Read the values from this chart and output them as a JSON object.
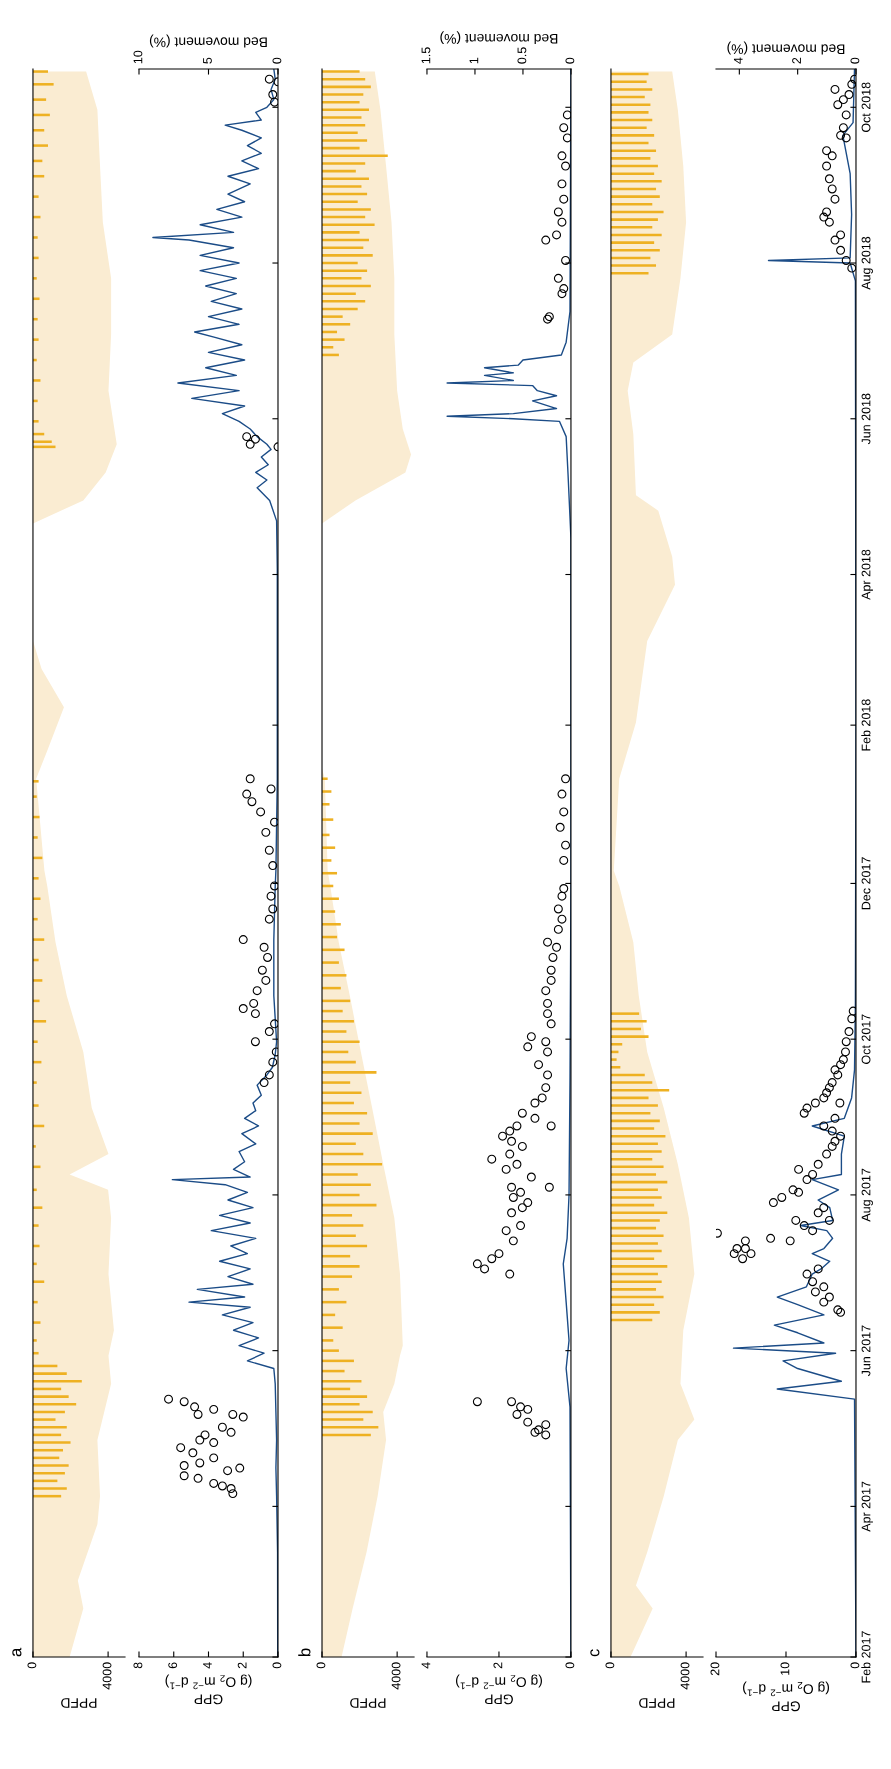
{
  "chart_data": [
    {
      "type": "area",
      "orientation": "horizontal",
      "title": "a",
      "xlabel": "PPFD",
      "ylim": [
        "2017-02-01",
        "2018-10-16"
      ],
      "xlim": [
        0,
        4900
      ],
      "xticks": [
        0,
        4000
      ],
      "tick_labels": "x",
      "series": [
        {
          "color": "#faecd2",
          "x": [
            "2017-02-01",
            "2017-02-20",
            "2017-03-03",
            "2017-03-25",
            "2017-04-05",
            "2017-04-27",
            "2017-05-19",
            "2017-05-30",
            "2017-06-09",
            "2017-07-01",
            "2017-07-23",
            "2017-08-03",
            "2017-08-09",
            "2017-08-17",
            "2017-09-04",
            "2017-09-26",
            "2017-10-18",
            "2017-11-08",
            "2017-11-30",
            "2017-12-06",
            "2018-01-11",
            "2018-01-22",
            "2018-02-08",
            "2018-02-23",
            "2018-03-06",
            "2018-04-21",
            "2018-04-30",
            "2018-05-11",
            "2018-05-22",
            "2018-06-12",
            "2018-07-04",
            "2018-07-26",
            "2018-08-17",
            "2018-09-08",
            "2018-09-30",
            "2018-10-15"
          ],
          "values": [
            1950,
            2680,
            2390,
            3430,
            3570,
            3430,
            4160,
            4020,
            4310,
            4020,
            4160,
            4000,
            1950,
            4020,
            3130,
            2680,
            1800,
            1200,
            760,
            610,
            170,
            760,
            1650,
            460,
            0,
            0,
            2680,
            3870,
            4460,
            4020,
            4160,
            4160,
            3720,
            3570,
            3430,
            2830
          ]
        },
        {
          "type": "bar",
          "color": "#eeb122",
          "x": [
            "2017-04-05",
            "2017-04-08",
            "2017-04-11",
            "2017-04-14",
            "2017-04-17",
            "2017-04-20",
            "2017-04-23",
            "2017-04-26",
            "2017-04-29",
            "2017-05-02",
            "2017-05-05",
            "2017-05-08",
            "2017-05-11",
            "2017-05-14",
            "2017-05-17",
            "2017-05-20",
            "2017-05-23",
            "2017-05-26",
            "2017-05-31",
            "2017-06-05",
            "2017-06-12",
            "2017-06-20",
            "2017-06-28",
            "2017-07-05",
            "2017-07-12",
            "2017-07-20",
            "2017-07-27",
            "2017-08-03",
            "2017-08-12",
            "2017-08-20",
            "2017-08-28",
            "2017-09-05",
            "2017-09-14",
            "2017-09-22",
            "2017-09-30",
            "2017-10-08",
            "2017-10-16",
            "2017-10-24",
            "2017-11-01",
            "2017-11-09",
            "2017-11-17",
            "2017-11-25",
            "2017-12-03",
            "2017-12-11",
            "2017-12-19",
            "2017-12-27",
            "2018-01-04",
            "2018-01-10",
            "2018-05-21",
            "2018-05-23",
            "2018-05-26",
            "2018-05-31",
            "2018-06-08",
            "2018-06-16",
            "2018-06-24",
            "2018-07-02",
            "2018-07-10",
            "2018-07-18",
            "2018-07-26",
            "2018-08-03",
            "2018-08-11",
            "2018-08-19",
            "2018-08-27",
            "2018-09-04",
            "2018-09-10",
            "2018-09-16",
            "2018-09-22",
            "2018-09-28",
            "2018-10-04",
            "2018-10-10",
            "2018-10-15"
          ],
          "values": [
            1500,
            1800,
            1300,
            1700,
            1900,
            1400,
            1600,
            2000,
            1500,
            1800,
            1200,
            1700,
            2300,
            1900,
            1500,
            2600,
            1800,
            1300,
            300,
            200,
            400,
            250,
            600,
            200,
            350,
            300,
            500,
            200,
            400,
            150,
            600,
            300,
            200,
            450,
            250,
            700,
            350,
            500,
            300,
            600,
            250,
            400,
            300,
            500,
            250,
            350,
            200,
            300,
            1200,
            1000,
            600,
            300,
            250,
            400,
            200,
            300,
            250,
            350,
            200,
            300,
            250,
            400,
            300,
            600,
            500,
            800,
            600,
            900,
            700,
            1100,
            800
          ]
        }
      ]
    },
    {
      "type": "scatter",
      "orientation": "horizontal",
      "xlabel": "GPP\n(g O$_{2}$ m$^{−2}$ d$^{−1}$)",
      "x2label": "Bed movement (%)",
      "ylim": [
        "2017-02-01",
        "2018-10-16"
      ],
      "yticks": [
        {
          "value": "2017-02-01",
          "label": null
        },
        {
          "value": "2017-04-01",
          "label": null
        },
        {
          "value": "2017-06-01",
          "label": null
        },
        {
          "value": "2017-08-01",
          "label": null
        },
        {
          "value": "2017-10-01",
          "label": null
        },
        {
          "value": "2017-12-01",
          "label": null
        },
        {
          "value": "2018-02-01",
          "label": null
        },
        {
          "value": "2018-04-01",
          "label": null
        },
        {
          "value": "2018-06-01",
          "label": null
        },
        {
          "value": "2018-08-01",
          "label": null
        },
        {
          "value": "2018-10-01",
          "label": null
        }
      ],
      "xlim": [
        8,
        0
      ],
      "xticks": [
        0,
        2,
        4,
        6,
        8
      ],
      "x2lim": [
        10,
        0
      ],
      "x2ticks": [
        0,
        5,
        10
      ],
      "tick_labels": "x",
      "series": [
        {
          "color": "#000000",
          "marker": "circle",
          "x": [
            "2017-04-06",
            "2017-04-08",
            "2017-04-09",
            "2017-04-10",
            "2017-04-12",
            "2017-04-13",
            "2017-04-15",
            "2017-04-16",
            "2017-04-17",
            "2017-04-18",
            "2017-04-20",
            "2017-04-22",
            "2017-04-24",
            "2017-04-26",
            "2017-04-27",
            "2017-04-29",
            "2017-04-30",
            "2017-05-02",
            "2017-05-06",
            "2017-05-07",
            "2017-05-07",
            "2017-05-09",
            "2017-05-10",
            "2017-05-12",
            "2017-05-13",
            "2017-09-14",
            "2017-09-17",
            "2017-09-22",
            "2017-09-26",
            "2017-09-30",
            "2017-10-04",
            "2017-10-07",
            "2017-10-11",
            "2017-10-13",
            "2017-10-15",
            "2017-10-20",
            "2017-10-24",
            "2017-10-28",
            "2017-11-02",
            "2017-11-06",
            "2017-11-09",
            "2017-11-17",
            "2017-11-21",
            "2017-11-26",
            "2017-11-30",
            "2017-12-08",
            "2017-12-14",
            "2017-12-21",
            "2017-12-25",
            "2017-12-29",
            "2018-01-02",
            "2018-01-05",
            "2018-01-07",
            "2018-01-11",
            "2018-05-21",
            "2018-05-22",
            "2018-05-24",
            "2018-05-25",
            "2018-10-03",
            "2018-10-06",
            "2018-10-11",
            "2018-10-12"
          ],
          "values": [
            2.6,
            2.7,
            3.2,
            3.7,
            4.6,
            5.4,
            2.9,
            2.2,
            5.4,
            4.5,
            3.7,
            4.9,
            5.6,
            3.7,
            4.5,
            4.2,
            2.7,
            3.2,
            2.0,
            4.6,
            2.6,
            3.7,
            4.8,
            5.4,
            6.3,
            0.8,
            0.5,
            0.3,
            0.1,
            1.3,
            0.5,
            0.2,
            1.3,
            2.0,
            1.4,
            1.2,
            0.7,
            0.9,
            0.6,
            0.8,
            2.0,
            0.5,
            0.3,
            0.4,
            0.2,
            0.3,
            0.5,
            0.7,
            0.2,
            1.0,
            1.5,
            1.8,
            0.4,
            1.6,
            0.0,
            1.6,
            1.3,
            1.8,
            0.2,
            0.3,
            0.0,
            0.5
          ]
        },
        {
          "type": "line",
          "axis": "x2",
          "color": "#1b4c87",
          "x": [
            "2017-02-01",
            "2017-03-14",
            "2017-04-05",
            "2017-04-16",
            "2017-04-27",
            "2017-05-08",
            "2017-05-19",
            "2017-05-25",
            "2017-05-28",
            "2017-05-31",
            "2017-06-03",
            "2017-06-06",
            "2017-06-09",
            "2017-06-12",
            "2017-06-15",
            "2017-06-18",
            "2017-06-20",
            "2017-06-22",
            "2017-06-25",
            "2017-06-27",
            "2017-06-30",
            "2017-07-03",
            "2017-07-06",
            "2017-07-09",
            "2017-07-12",
            "2017-07-15",
            "2017-07-18",
            "2017-07-21",
            "2017-07-24",
            "2017-07-27",
            "2017-07-30",
            "2017-08-02",
            "2017-08-05",
            "2017-08-07",
            "2017-08-08",
            "2017-08-11",
            "2017-08-14",
            "2017-08-18",
            "2017-08-21",
            "2017-08-25",
            "2017-08-28",
            "2017-08-31",
            "2017-09-03",
            "2017-09-06",
            "2017-09-09",
            "2017-09-13",
            "2017-09-17",
            "2017-09-20",
            "2017-09-25",
            "2017-09-30",
            "2017-10-18",
            "2017-11-09",
            "2017-11-30",
            "2017-12-06",
            "2018-01-11",
            "2018-02-04",
            "2018-04-03",
            "2018-04-22",
            "2018-04-30",
            "2018-05-05",
            "2018-05-08",
            "2018-05-11",
            "2018-05-14",
            "2018-05-17",
            "2018-05-20",
            "2018-05-22",
            "2018-05-25",
            "2018-05-28",
            "2018-05-31",
            "2018-06-03",
            "2018-06-06",
            "2018-06-09",
            "2018-06-12",
            "2018-06-15",
            "2018-06-18",
            "2018-06-21",
            "2018-06-24",
            "2018-06-27",
            "2018-06-30",
            "2018-07-03",
            "2018-07-05",
            "2018-07-08",
            "2018-07-11",
            "2018-07-14",
            "2018-07-17",
            "2018-07-20",
            "2018-07-23",
            "2018-07-26",
            "2018-07-29",
            "2018-08-01",
            "2018-08-04",
            "2018-08-07",
            "2018-08-10",
            "2018-08-11",
            "2018-08-13",
            "2018-08-16",
            "2018-08-19",
            "2018-08-22",
            "2018-08-25",
            "2018-08-28",
            "2018-09-01",
            "2018-09-04",
            "2018-09-07",
            "2018-09-10",
            "2018-09-13",
            "2018-09-16",
            "2018-09-19",
            "2018-09-22",
            "2018-09-24",
            "2018-09-26",
            "2018-09-29",
            "2018-10-01",
            "2018-10-04",
            "2018-10-08",
            "2018-10-12",
            "2018-10-16"
          ],
          "values": [
            0.02,
            0.03,
            0.1,
            0.15,
            0.1,
            0.15,
            0.2,
            0.3,
            2.2,
            1.0,
            2.8,
            1.4,
            3.2,
            1.8,
            4.0,
            2.0,
            6.4,
            2.4,
            5.8,
            1.8,
            3.6,
            2.0,
            4.2,
            2.2,
            3.4,
            1.6,
            4.8,
            2.0,
            4.2,
            1.8,
            3.6,
            2.2,
            3.8,
            7.6,
            2.0,
            3.2,
            2.4,
            2.8,
            1.6,
            2.6,
            1.4,
            2.4,
            1.6,
            1.8,
            1.2,
            1.5,
            0.8,
            0.4,
            0.2,
            0.1,
            0.3,
            0.3,
            0.2,
            0.15,
            0.05,
            0.05,
            0.05,
            0.1,
            0.6,
            1.5,
            0.8,
            1.6,
            0.7,
            1.2,
            0.5,
            0.8,
            1.5,
            2.0,
            2.8,
            4.0,
            2.4,
            6.2,
            2.8,
            7.2,
            3.0,
            5.2,
            2.4,
            5.0,
            2.6,
            4.6,
            6.0,
            2.8,
            5.0,
            2.6,
            4.8,
            3.0,
            5.2,
            3.0,
            5.6,
            2.8,
            5.6,
            3.2,
            6.4,
            9.0,
            3.2,
            5.6,
            2.6,
            4.4,
            2.4,
            3.6,
            2.0,
            3.6,
            1.4,
            2.6,
            1.2,
            2.2,
            1.2,
            2.6,
            3.8,
            1.2,
            1.6,
            0.8,
            0.3,
            0.5,
            0.2,
            0.3
          ]
        }
      ]
    },
    {
      "type": "area",
      "orientation": "horizontal",
      "title": "b",
      "xlabel": "PPFD",
      "ylim": [
        "2017-02-01",
        "2018-10-16"
      ],
      "xlim": [
        0,
        4900
      ],
      "xticks": [
        0,
        4000
      ],
      "tick_labels": "x",
      "series": [
        {
          "color": "#faecd2",
          "x": [
            "2017-02-01",
            "2017-02-20",
            "2017-03-14",
            "2017-04-05",
            "2017-04-27",
            "2017-05-08",
            "2017-05-19",
            "2017-05-30",
            "2017-06-03",
            "2017-07-01",
            "2017-07-23",
            "2017-08-13",
            "2017-09-04",
            "2017-09-26",
            "2017-10-18",
            "2017-11-08",
            "2017-11-30",
            "2017-12-06",
            "2018-01-11",
            "2018-01-15",
            "2018-04-21",
            "2018-04-30",
            "2018-05-11",
            "2018-05-18",
            "2018-05-28",
            "2018-06-12",
            "2018-07-04",
            "2018-07-26",
            "2018-08-17",
            "2018-09-08",
            "2018-09-30",
            "2018-10-15"
          ],
          "values": [
            1040,
            1630,
            2370,
            2960,
            3410,
            3260,
            3850,
            4150,
            4300,
            4150,
            3850,
            3260,
            2670,
            2070,
            1480,
            890,
            440,
            300,
            150,
            0,
            0,
            1780,
            4440,
            4740,
            4300,
            4000,
            3850,
            3850,
            3700,
            3410,
            3110,
            2810
          ]
        },
        {
          "type": "bar",
          "color": "#eeb122",
          "x": [
            "2017-04-29",
            "2017-05-02",
            "2017-05-05",
            "2017-05-08",
            "2017-05-11",
            "2017-05-14",
            "2017-05-17",
            "2017-05-20",
            "2017-05-24",
            "2017-05-28",
            "2017-06-01",
            "2017-06-05",
            "2017-06-10",
            "2017-06-15",
            "2017-06-20",
            "2017-06-25",
            "2017-06-30",
            "2017-07-04",
            "2017-07-08",
            "2017-07-12",
            "2017-07-16",
            "2017-07-20",
            "2017-07-24",
            "2017-07-28",
            "2017-08-01",
            "2017-08-05",
            "2017-08-09",
            "2017-08-13",
            "2017-08-17",
            "2017-08-21",
            "2017-08-25",
            "2017-08-29",
            "2017-09-02",
            "2017-09-06",
            "2017-09-10",
            "2017-09-14",
            "2017-09-18",
            "2017-09-22",
            "2017-09-26",
            "2017-09-30",
            "2017-10-04",
            "2017-10-08",
            "2017-10-12",
            "2017-10-16",
            "2017-10-21",
            "2017-10-26",
            "2017-10-31",
            "2017-11-05",
            "2017-11-10",
            "2017-11-15",
            "2017-11-20",
            "2017-11-25",
            "2017-11-30",
            "2017-12-05",
            "2017-12-10",
            "2017-12-15",
            "2017-12-20",
            "2017-12-26",
            "2018-01-01",
            "2018-01-06",
            "2018-01-11",
            "2018-06-26",
            "2018-06-29",
            "2018-07-02",
            "2018-07-05",
            "2018-07-08",
            "2018-07-11",
            "2018-07-14",
            "2018-07-17",
            "2018-07-20",
            "2018-07-23",
            "2018-07-26",
            "2018-07-29",
            "2018-08-01",
            "2018-08-04",
            "2018-08-07",
            "2018-08-10",
            "2018-08-13",
            "2018-08-16",
            "2018-08-19",
            "2018-08-22",
            "2018-08-25",
            "2018-08-28",
            "2018-08-31",
            "2018-09-03",
            "2018-09-06",
            "2018-09-09",
            "2018-09-12",
            "2018-09-15",
            "2018-09-18",
            "2018-09-21",
            "2018-09-24",
            "2018-09-27",
            "2018-09-30",
            "2018-10-03",
            "2018-10-06",
            "2018-10-09",
            "2018-10-12",
            "2018-10-15"
          ],
          "values": [
            2600,
            3000,
            2200,
            2700,
            2000,
            2400,
            1500,
            2100,
            1200,
            1700,
            900,
            600,
            1100,
            700,
            1300,
            900,
            1600,
            2000,
            1500,
            2400,
            1800,
            2200,
            1600,
            2900,
            2000,
            2600,
            1900,
            3200,
            2200,
            1800,
            2700,
            2000,
            2400,
            1700,
            2100,
            1500,
            2900,
            1800,
            1400,
            2000,
            1300,
            1700,
            1100,
            1500,
            1000,
            1300,
            900,
            1200,
            800,
            1000,
            700,
            900,
            600,
            800,
            500,
            700,
            400,
            600,
            400,
            500,
            300,
            900,
            600,
            1200,
            800,
            1500,
            1100,
            1900,
            2300,
            1800,
            2600,
            2100,
            2400,
            1900,
            2700,
            2200,
            2500,
            2000,
            2800,
            2300,
            2600,
            1900,
            2400,
            2100,
            2500,
            1800,
            2300,
            3500,
            2000,
            2400,
            1900,
            2300,
            2100,
            2500,
            2000,
            2200,
            2600,
            2300,
            2000
          ]
        }
      ]
    },
    {
      "type": "scatter",
      "orientation": "horizontal",
      "xlabel": "GPP\n(g O$_{2}$ m$^{−2}$ d$^{−1}$)",
      "x2label": "Bed movement (%)",
      "ylim": [
        "2017-02-01",
        "2018-10-16"
      ],
      "yticks": [
        {
          "value": "2017-02-01",
          "label": null
        },
        {
          "value": "2017-04-01",
          "label": null
        },
        {
          "value": "2017-06-01",
          "label": null
        },
        {
          "value": "2017-08-01",
          "label": null
        },
        {
          "value": "2017-10-01",
          "label": null
        },
        {
          "value": "2017-12-01",
          "label": null
        },
        {
          "value": "2018-02-01",
          "label": null
        },
        {
          "value": "2018-04-01",
          "label": null
        },
        {
          "value": "2018-06-01",
          "label": null
        },
        {
          "value": "2018-08-01",
          "label": null
        },
        {
          "value": "2018-10-01",
          "label": null
        }
      ],
      "xlim": [
        4,
        0
      ],
      "xticks": [
        0,
        2,
        4
      ],
      "x2lim": [
        1.5,
        0
      ],
      "x2ticks": [
        0,
        0.5,
        1,
        1.5
      ],
      "tick_labels": "x",
      "series": [
        {
          "color": "#000000",
          "marker": "circle",
          "x": [
            "2017-04-29",
            "2017-04-30",
            "2017-05-01",
            "2017-05-03",
            "2017-05-04",
            "2017-05-07",
            "2017-05-09",
            "2017-05-10",
            "2017-05-12",
            "2017-05-12",
            "2017-07-01",
            "2017-07-03",
            "2017-07-05",
            "2017-07-07",
            "2017-07-09",
            "2017-07-14",
            "2017-07-18",
            "2017-07-20",
            "2017-07-25",
            "2017-07-27",
            "2017-07-29",
            "2017-07-31",
            "2017-08-02",
            "2017-08-04",
            "2017-08-04",
            "2017-08-08",
            "2017-08-11",
            "2017-08-13",
            "2017-08-15",
            "2017-08-17",
            "2017-08-20",
            "2017-08-22",
            "2017-08-24",
            "2017-08-26",
            "2017-08-28",
            "2017-08-28",
            "2017-08-31",
            "2017-09-02",
            "2017-09-06",
            "2017-09-08",
            "2017-09-12",
            "2017-09-17",
            "2017-09-21",
            "2017-09-26",
            "2017-09-28",
            "2017-09-30",
            "2017-10-02",
            "2017-10-07",
            "2017-10-11",
            "2017-10-15",
            "2017-10-20",
            "2017-10-24",
            "2017-10-28",
            "2017-11-02",
            "2017-11-06",
            "2017-11-08",
            "2017-11-13",
            "2017-11-17",
            "2017-11-21",
            "2017-11-26",
            "2017-11-29",
            "2017-12-10",
            "2017-12-16",
            "2017-12-23",
            "2017-12-29",
            "2018-01-05",
            "2018-01-11",
            "2018-07-10",
            "2018-07-11",
            "2018-07-20",
            "2018-07-22",
            "2018-07-26",
            "2018-08-02",
            "2018-08-10",
            "2018-08-12",
            "2018-08-17",
            "2018-08-21",
            "2018-08-26",
            "2018-09-01",
            "2018-09-08",
            "2018-09-12",
            "2018-09-19",
            "2018-09-23",
            "2018-09-28"
          ],
          "values": [
            0.7,
            1.0,
            0.9,
            0.7,
            1.2,
            1.5,
            1.2,
            1.4,
            1.65,
            2.6,
            1.7,
            2.4,
            2.6,
            2.2,
            2.0,
            1.6,
            1.8,
            1.4,
            1.65,
            1.35,
            1.2,
            1.6,
            1.4,
            1.65,
            0.6,
            1.1,
            1.8,
            1.5,
            2.2,
            1.7,
            1.35,
            1.65,
            1.9,
            1.7,
            1.5,
            0.55,
            1.0,
            1.35,
            1.0,
            0.8,
            0.7,
            0.65,
            0.9,
            0.65,
            1.2,
            0.7,
            1.1,
            0.55,
            0.65,
            0.65,
            0.7,
            0.55,
            0.55,
            0.5,
            0.4,
            0.65,
            0.35,
            0.25,
            0.35,
            0.25,
            0.2,
            0.2,
            0.15,
            0.3,
            0.2,
            0.25,
            0.15,
            0.65,
            0.6,
            0.25,
            0.2,
            0.35,
            0.15,
            0.7,
            0.4,
            0.25,
            0.35,
            0.2,
            0.25,
            0.15,
            0.25,
            0.1,
            0.2,
            0.1
          ]
        },
        {
          "type": "line",
          "axis": "x2",
          "color": "#1b4c87",
          "x": [
            "2017-02-01",
            "2017-05-10",
            "2017-05-25",
            "2017-06-05",
            "2017-06-20",
            "2017-07-05",
            "2017-07-15",
            "2017-08-01",
            "2017-09-15",
            "2017-12-01",
            "2018-04-15",
            "2018-05-10",
            "2018-05-25",
            "2018-05-31",
            "2018-06-01",
            "2018-06-02",
            "2018-06-03",
            "2018-06-05",
            "2018-06-08",
            "2018-06-10",
            "2018-06-12",
            "2018-06-14",
            "2018-06-15",
            "2018-06-16",
            "2018-06-18",
            "2018-06-19",
            "2018-06-21",
            "2018-06-22",
            "2018-06-24",
            "2018-06-26",
            "2018-07-01",
            "2018-07-13",
            "2018-10-16"
          ],
          "values": [
            0.0,
            0.01,
            0.05,
            0.02,
            0.05,
            0.08,
            0.04,
            0.02,
            0.01,
            0.0,
            0.0,
            0.03,
            0.05,
            0.12,
            0.6,
            1.29,
            0.6,
            0.15,
            0.4,
            0.15,
            0.35,
            0.4,
            1.29,
            0.6,
            0.9,
            0.6,
            0.9,
            0.55,
            0.5,
            0.1,
            0.05,
            0.01,
            0.0
          ]
        }
      ]
    },
    {
      "type": "area",
      "orientation": "horizontal",
      "title": "c",
      "xlabel": "PPFD",
      "ylim": [
        "2017-02-01",
        "2018-10-16"
      ],
      "xlim": [
        0,
        4900
      ],
      "xticks": [
        0,
        4000
      ],
      "tick_labels": "x",
      "series": [
        {
          "color": "#faecd2",
          "x": [
            "2017-02-01",
            "2017-02-20",
            "2017-03-01",
            "2017-03-14",
            "2017-04-05",
            "2017-04-27",
            "2017-05-05",
            "2017-05-19",
            "2017-06-09",
            "2017-07-01",
            "2017-07-23",
            "2017-08-13",
            "2017-09-04",
            "2017-09-26",
            "2017-10-18",
            "2017-11-08",
            "2017-11-30",
            "2017-12-06",
            "2018-01-11",
            "2018-02-02",
            "2018-03-06",
            "2018-03-28",
            "2018-04-08",
            "2018-04-26",
            "2018-05-02",
            "2018-05-26",
            "2018-06-12",
            "2018-06-23",
            "2018-07-04",
            "2018-07-26",
            "2018-08-17",
            "2018-09-08",
            "2018-09-30",
            "2018-10-15"
          ],
          "values": [
            1040,
            2220,
            1330,
            1930,
            2810,
            3560,
            4440,
            3700,
            3850,
            4440,
            4150,
            3560,
            2810,
            1930,
            1480,
            1190,
            440,
            150,
            440,
            1330,
            1930,
            3410,
            3260,
            2520,
            1330,
            1190,
            890,
            1190,
            3260,
            3700,
            4000,
            3850,
            3560,
            3260
          ]
        },
        {
          "type": "bar",
          "color": "#eeb122",
          "x": [
            "2017-06-13",
            "2017-06-16",
            "2017-06-19",
            "2017-06-22",
            "2017-06-25",
            "2017-06-28",
            "2017-07-01",
            "2017-07-04",
            "2017-07-07",
            "2017-07-10",
            "2017-07-13",
            "2017-07-16",
            "2017-07-19",
            "2017-07-22",
            "2017-07-25",
            "2017-07-28",
            "2017-07-31",
            "2017-08-03",
            "2017-08-06",
            "2017-08-09",
            "2017-08-12",
            "2017-08-15",
            "2017-08-18",
            "2017-08-21",
            "2017-08-24",
            "2017-08-27",
            "2017-08-30",
            "2017-09-02",
            "2017-09-05",
            "2017-09-08",
            "2017-09-11",
            "2017-09-14",
            "2017-09-17",
            "2017-09-20",
            "2017-09-23",
            "2017-09-26",
            "2017-09-29",
            "2017-10-02",
            "2017-10-05",
            "2017-10-08",
            "2017-10-11",
            "2018-07-28",
            "2018-07-31",
            "2018-08-03",
            "2018-08-06",
            "2018-08-09",
            "2018-08-12",
            "2018-08-15",
            "2018-08-18",
            "2018-08-21",
            "2018-08-24",
            "2018-08-27",
            "2018-08-30",
            "2018-09-02",
            "2018-09-05",
            "2018-09-08",
            "2018-09-11",
            "2018-09-14",
            "2018-09-17",
            "2018-09-20",
            "2018-09-23",
            "2018-09-26",
            "2018-09-29",
            "2018-10-02",
            "2018-10-05",
            "2018-10-08",
            "2018-10-11",
            "2018-10-14"
          ],
          "values": [
            2200,
            2600,
            2300,
            2800,
            2400,
            2700,
            2500,
            3000,
            2300,
            2700,
            2500,
            2800,
            2400,
            2600,
            3000,
            2300,
            2700,
            2500,
            3000,
            2400,
            2800,
            2200,
            2700,
            2500,
            2900,
            2300,
            2600,
            2100,
            2500,
            2000,
            3100,
            2200,
            1800,
            500,
            300,
            400,
            600,
            2000,
            1600,
            1900,
            1500,
            2000,
            2400,
            2100,
            2600,
            2300,
            2700,
            2200,
            2500,
            2800,
            2200,
            2600,
            2400,
            2700,
            2300,
            2500,
            2100,
            2400,
            2000,
            2300,
            1900,
            2200,
            2000,
            2100,
            1800,
            2200,
            1900,
            2000
          ]
        }
      ]
    },
    {
      "type": "scatter",
      "orientation": "horizontal",
      "xlabel": "GPP\n(g O$_{2}$ m$^{−2}$ d$^{−1}$)",
      "x2label": "Bed movement (%)",
      "ylim": [
        "2017-02-01",
        "2018-10-16"
      ],
      "yticks": [
        {
          "value": "2017-02-01",
          "label": "Feb 2017"
        },
        {
          "value": "2017-04-01",
          "label": "Apr 2017"
        },
        {
          "value": "2017-06-01",
          "label": "Jun 2017"
        },
        {
          "value": "2017-08-01",
          "label": "Aug 2017"
        },
        {
          "value": "2017-10-01",
          "label": "Oct 2017"
        },
        {
          "value": "2017-12-01",
          "label": "Dec 2017"
        },
        {
          "value": "2018-02-01",
          "label": "Feb 2018"
        },
        {
          "value": "2018-04-01",
          "label": "Apr 2018"
        },
        {
          "value": "2018-06-01",
          "label": "Jun 2018"
        },
        {
          "value": "2018-08-01",
          "label": "Aug 2018"
        },
        {
          "value": "2018-10-01",
          "label": "Oct 2018"
        }
      ],
      "xlim": [
        20,
        0
      ],
      "xticks": [
        0,
        10,
        20
      ],
      "x2lim": [
        4.8,
        0
      ],
      "x2ticks": [
        0,
        2,
        4
      ],
      "series": [
        {
          "color": "#000000",
          "marker": "circle",
          "x": [
            "2017-06-16",
            "2017-06-17",
            "2017-06-20",
            "2017-06-22",
            "2017-06-24",
            "2017-06-26",
            "2017-06-28",
            "2017-07-01",
            "2017-07-03",
            "2017-07-07",
            "2017-07-09",
            "2017-07-09",
            "2017-07-11",
            "2017-07-11",
            "2017-07-14",
            "2017-07-14",
            "2017-07-15",
            "2017-07-17",
            "2017-07-18",
            "2017-07-20",
            "2017-07-22",
            "2017-07-22",
            "2017-07-25",
            "2017-07-27",
            "2017-07-29",
            "2017-07-31",
            "2017-08-02",
            "2017-08-03",
            "2017-08-07",
            "2017-08-09",
            "2017-08-11",
            "2017-08-13",
            "2017-08-17",
            "2017-08-20",
            "2017-08-22",
            "2017-08-24",
            "2017-08-26",
            "2017-08-28",
            "2017-08-31",
            "2017-09-02",
            "2017-09-04",
            "2017-09-06",
            "2017-09-06",
            "2017-09-08",
            "2017-09-10",
            "2017-09-12",
            "2017-09-14",
            "2017-09-17",
            "2017-09-19",
            "2017-09-21",
            "2017-09-23",
            "2017-09-26",
            "2017-09-30",
            "2017-10-04",
            "2017-10-09",
            "2017-10-12",
            "2018-07-30",
            "2018-08-02",
            "2018-08-06",
            "2018-08-10",
            "2018-08-12",
            "2018-08-17",
            "2018-08-19",
            "2018-08-21",
            "2018-08-26",
            "2018-08-30",
            "2018-09-03",
            "2018-09-08",
            "2018-09-12",
            "2018-09-14",
            "2018-09-19",
            "2018-09-20",
            "2018-09-23",
            "2018-09-28",
            "2018-10-02",
            "2018-10-04",
            "2018-10-06",
            "2018-10-08",
            "2018-10-10",
            "2018-10-12"
          ],
          "values": [
            2.2,
            2.6,
            4.6,
            3.8,
            5.8,
            4.6,
            6.2,
            7.0,
            5.4,
            16.2,
            17.4,
            15.0,
            17.0,
            15.8,
            15.8,
            9.4,
            12.2,
            19.8,
            6.2,
            7.4,
            8.6,
            3.8,
            5.4,
            4.6,
            11.8,
            10.6,
            8.2,
            9.0,
            7.0,
            6.2,
            8.2,
            5.4,
            4.2,
            3.4,
            3.0,
            2.2,
            3.4,
            4.6,
            3.0,
            7.4,
            7.0,
            5.8,
            2.3,
            4.6,
            4.2,
            3.8,
            3.4,
            2.6,
            3.0,
            2.2,
            1.8,
            1.5,
            1.4,
            1.0,
            0.6,
            0.4,
            0.6,
            1.4,
            2.2,
            3.0,
            2.2,
            3.8,
            4.6,
            4.2,
            3.0,
            3.4,
            3.8,
            4.2,
            3.4,
            4.2,
            1.4,
            2.2,
            1.8,
            1.4,
            2.6,
            1.8,
            1.0,
            3.0,
            0.6,
            0.2
          ]
        },
        {
          "type": "line",
          "axis": "x2",
          "color": "#1b4c87",
          "x": [
            "2017-02-01",
            "2017-05-13",
            "2017-05-17",
            "2017-05-20",
            "2017-05-25",
            "2017-05-28",
            "2017-05-31",
            "2017-06-02",
            "2017-06-04",
            "2017-06-08",
            "2017-06-11",
            "2017-06-15",
            "2017-06-19",
            "2017-06-22",
            "2017-06-26",
            "2017-07-01",
            "2017-07-03",
            "2017-07-06",
            "2017-07-09",
            "2017-07-11",
            "2017-07-15",
            "2017-07-18",
            "2017-07-20",
            "2017-07-22",
            "2017-07-27",
            "2017-07-30",
            "2017-08-03",
            "2017-08-07",
            "2017-08-09",
            "2017-08-17",
            "2017-08-24",
            "2017-08-28",
            "2017-08-31",
            "2017-09-08",
            "2017-09-19",
            "2017-10-15",
            "2018-02-01",
            "2018-07-25",
            "2018-08-01",
            "2018-08-02",
            "2018-08-03",
            "2018-08-20",
            "2018-09-05",
            "2018-09-20",
            "2018-09-25",
            "2018-10-16"
          ],
          "values": [
            0.0,
            0.05,
            2.7,
            0.5,
            2.0,
            2.5,
            0.7,
            4.2,
            1.1,
            2.0,
            2.8,
            1.1,
            2.0,
            2.7,
            1.7,
            1.5,
            1.2,
            0.9,
            1.5,
            1.1,
            0.8,
            1.0,
            1.9,
            0.8,
            0.9,
            1.3,
            0.6,
            1.5,
            0.5,
            0.5,
            0.4,
            1.5,
            0.4,
            0.15,
            0.05,
            0.02,
            0.0,
            0.02,
            0.2,
            3.0,
            0.2,
            0.15,
            0.2,
            0.45,
            0.1,
            0.05
          ]
        }
      ]
    }
  ]
}
